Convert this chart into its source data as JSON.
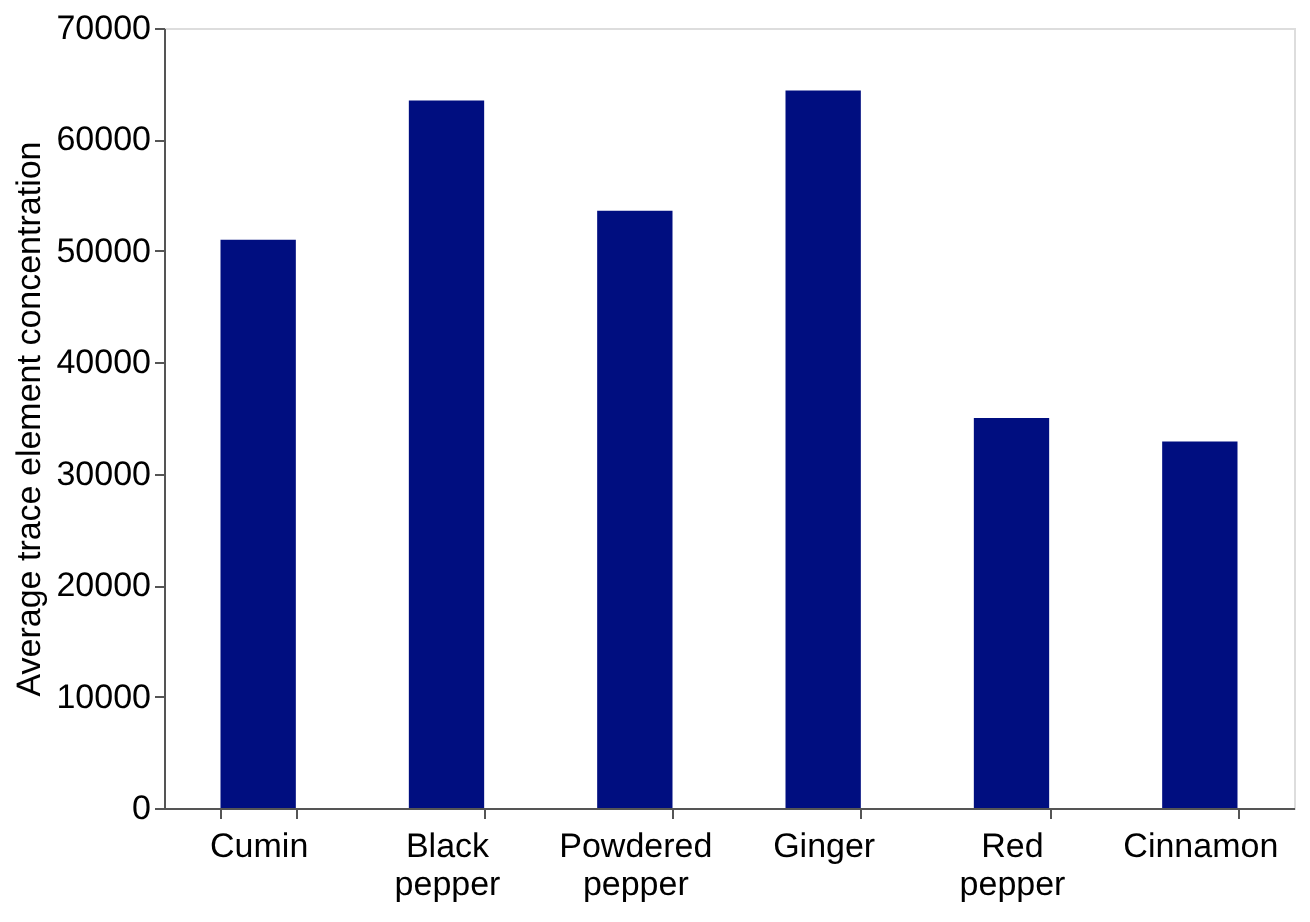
{
  "chart_data": {
    "type": "bar",
    "ylabel": "Average trace element concentration",
    "categories": [
      "Cumin",
      "Black pepper",
      "Powdered pepper",
      "Ginger",
      "Red pepper",
      "Cinnamon"
    ],
    "values": [
      51000,
      63500,
      53600,
      64400,
      35000,
      32900
    ],
    "color": "#000e80",
    "ylim": [
      0,
      70000
    ],
    "yticks": [
      0,
      10000,
      20000,
      30000,
      40000,
      50000,
      60000,
      70000
    ],
    "grid": false
  }
}
